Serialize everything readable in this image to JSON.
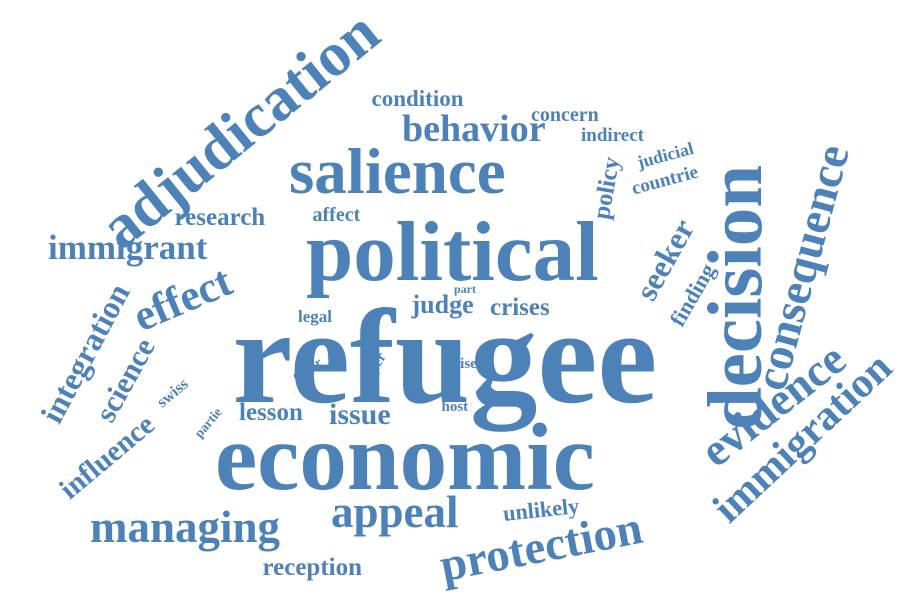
{
  "color": "#4d82b8",
  "words": [
    {
      "text": "refugee"
    },
    {
      "text": "economic"
    },
    {
      "text": "political"
    },
    {
      "text": "salience"
    },
    {
      "text": "protection"
    },
    {
      "text": "adjudication"
    },
    {
      "text": "decision"
    },
    {
      "text": "managing"
    },
    {
      "text": "appeal"
    },
    {
      "text": "consequence"
    },
    {
      "text": "immigration"
    },
    {
      "text": "immigrant"
    },
    {
      "text": "effect"
    },
    {
      "text": "evidence"
    },
    {
      "text": "behavior"
    },
    {
      "text": "issue"
    },
    {
      "text": "integration"
    },
    {
      "text": "science"
    },
    {
      "text": "seeker"
    },
    {
      "text": "influence"
    },
    {
      "text": "swiss"
    },
    {
      "text": "reception"
    },
    {
      "text": "condition"
    },
    {
      "text": "concern"
    },
    {
      "text": "indirect"
    },
    {
      "text": "judicial"
    },
    {
      "text": "countrie"
    },
    {
      "text": "policy"
    },
    {
      "text": "research"
    },
    {
      "text": "affect"
    },
    {
      "text": "judge"
    },
    {
      "text": "crises"
    },
    {
      "text": "lesson"
    },
    {
      "text": "unlikely"
    },
    {
      "text": "finding"
    },
    {
      "text": "legal"
    },
    {
      "text": "part"
    },
    {
      "text": "occur"
    },
    {
      "text": "paper"
    },
    {
      "text": "rise"
    },
    {
      "text": "host"
    },
    {
      "text": "partie"
    }
  ]
}
